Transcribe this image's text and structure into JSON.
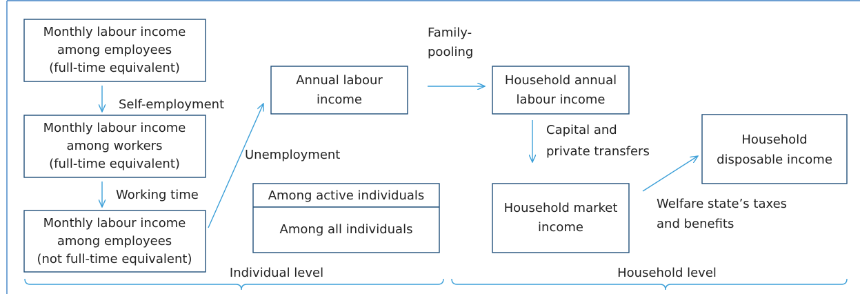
{
  "nodes": [
    {
      "lines": [
        "Monthly labour income",
        "among employees",
        "(full-time equivalent)"
      ]
    },
    {
      "lines": [
        "Monthly labour income",
        "among workers",
        "(full-time equivalent)"
      ]
    },
    {
      "lines": [
        "Monthly labour income",
        "among employees",
        "(not full-time equivalent)"
      ]
    },
    {
      "lines": [
        "Annual labour",
        "income"
      ]
    },
    {
      "lines": [
        "Household annual",
        "labour income"
      ]
    },
    {
      "lines": [
        "Among active individuals",
        "Among all individuals"
      ]
    },
    {
      "lines": [
        "Household market",
        "income"
      ]
    },
    {
      "lines": [
        "Household",
        "disposable income"
      ]
    }
  ],
  "edges": [
    {
      "lines": [
        "Self-employment"
      ]
    },
    {
      "lines": [
        "Working time"
      ]
    },
    {
      "lines": [
        "Unemployment"
      ]
    },
    {
      "lines": [
        "Family-",
        "pooling"
      ]
    },
    {
      "lines": [
        "Capital and",
        "private transfers"
      ]
    },
    {
      "lines": [
        "Welfare state’s taxes",
        "and benefits"
      ]
    }
  ],
  "levels": [
    "Individual level",
    "Household level"
  ]
}
